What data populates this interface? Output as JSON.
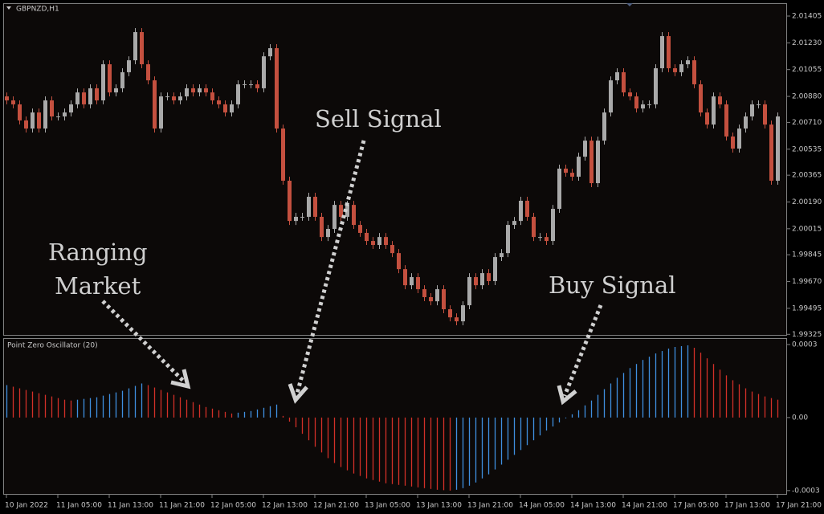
{
  "chart_data": [
    {
      "type": "candlestick",
      "title": "GBPNZD,H1",
      "categories": [
        "10 Jan 2022",
        null,
        null,
        null,
        null,
        null,
        null,
        null,
        "11 Jan 05:00",
        null,
        null,
        null,
        null,
        null,
        null,
        null,
        "11 Jan 13:00",
        null,
        null,
        null,
        null,
        null,
        null,
        null,
        "11 Jan 21:00",
        null,
        null,
        null,
        null,
        null,
        null,
        null,
        "12 Jan 05:00",
        null,
        null,
        null,
        null,
        null,
        null,
        null,
        "12 Jan 13:00",
        null,
        null,
        null,
        null,
        null,
        null,
        null,
        "12 Jan 21:00",
        null,
        null,
        null,
        null,
        null,
        null,
        null,
        "13 Jan 05:00",
        null,
        null,
        null,
        null,
        null,
        null,
        null,
        "13 Jan 13:00",
        null,
        null,
        null,
        null,
        null,
        null,
        null,
        "13 Jan 21:00",
        null,
        null,
        null,
        null,
        null,
        null,
        null,
        "14 Jan 05:00",
        null,
        null,
        null,
        null,
        null,
        null,
        null,
        "14 Jan 13:00",
        null,
        null,
        null,
        null,
        null,
        null,
        null,
        "14 Jan 21:00",
        null,
        null,
        null,
        null,
        null,
        null,
        null,
        "17 Jan 05:00",
        null,
        null,
        null,
        null,
        null,
        null,
        null,
        "17 Jan 13:00",
        null,
        null,
        null,
        null,
        null,
        null,
        null,
        "17 Jan 21:00"
      ],
      "open": [
        2.0088,
        2.00854,
        2.00828,
        2.00723,
        2.0067,
        2.00775,
        2.0067,
        2.00854,
        2.00749,
        2.00749,
        2.00775,
        2.00828,
        2.00906,
        2.00828,
        2.00933,
        2.00854,
        2.0109,
        2.00906,
        2.00933,
        2.01038,
        2.01116,
        2.013,
        2.0109,
        2.00985,
        2.0067,
        2.0088,
        2.0088,
        2.00854,
        2.0088,
        2.00933,
        2.00906,
        2.00933,
        2.00906,
        2.00854,
        2.00828,
        2.00775,
        2.00828,
        2.00959,
        2.00959,
        2.00959,
        2.00933,
        2.01142,
        2.01195,
        2.0067,
        2.00329,
        2.00066,
        2.00093,
        2.00093,
        2.00224,
        2.00093,
        1.99961,
        2.00014,
        2.00171,
        2.00093,
        2.00171,
        2.0004,
        1.99988,
        1.99935,
        1.99909,
        1.99961,
        1.99909,
        1.99856,
        1.99751,
        1.99646,
        1.99699,
        1.9962,
        1.99568,
        1.99541,
        1.9962,
        1.99489,
        1.99436,
        1.9941,
        1.99515,
        1.99699,
        1.99646,
        1.99725,
        1.99673,
        1.9983,
        1.99856,
        2.0004,
        2.00066,
        2.00198,
        2.00093,
        1.99961,
        1.99961,
        1.99935,
        2.00145,
        2.00408,
        2.00381,
        2.00355,
        2.00486,
        2.00591,
        2.00313,
        2.00591,
        2.00775,
        2.00985,
        2.01038,
        2.00906,
        2.0088,
        2.00801,
        2.00828,
        2.00828,
        2.01064,
        2.01274,
        2.01064,
        2.01038,
        2.0109,
        2.01116,
        2.00959,
        2.00775,
        2.00696,
        2.0088,
        2.00828,
        2.00618,
        2.00539,
        2.0067,
        2.00749,
        2.00828,
        2.00828,
        2.00696,
        2.00329
      ],
      "high": [
        2.00906,
        2.0088,
        2.00854,
        2.00749,
        2.00801,
        2.00801,
        2.0088,
        2.0088,
        2.00775,
        2.00801,
        2.00854,
        2.00932,
        2.00932,
        2.00959,
        2.00959,
        2.01116,
        2.01116,
        2.00959,
        2.01064,
        2.01142,
        2.01326,
        2.01326,
        2.01116,
        2.01011,
        2.00906,
        2.00906,
        2.00906,
        2.00906,
        2.00959,
        2.00959,
        2.00959,
        2.00959,
        2.00932,
        2.0088,
        2.00854,
        2.00854,
        2.00985,
        2.00985,
        2.00985,
        2.00985,
        2.01168,
        2.01221,
        2.01221,
        2.00696,
        2.00355,
        2.00119,
        2.00119,
        2.0025,
        2.0025,
        2.00119,
        2.0004,
        2.00197,
        2.00197,
        2.00197,
        2.00197,
        2.00066,
        2.00014,
        1.99961,
        1.99987,
        1.99987,
        1.99935,
        1.99882,
        1.99777,
        1.99725,
        1.99725,
        1.99646,
        1.99594,
        1.99646,
        1.99646,
        1.99515,
        1.99462,
        1.99541,
        1.99725,
        1.99725,
        1.99751,
        1.99751,
        1.99856,
        1.99882,
        2.00066,
        2.00092,
        2.00224,
        2.00224,
        2.00119,
        1.99987,
        1.99987,
        2.00171,
        2.00434,
        2.00434,
        2.00407,
        2.00512,
        2.00617,
        2.00617,
        2.00617,
        2.00801,
        2.01011,
        2.01064,
        2.01064,
        2.00932,
        2.00906,
        2.00854,
        2.00854,
        2.0109,
        2.013,
        2.013,
        2.0109,
        2.01116,
        2.01142,
        2.01142,
        2.00985,
        2.00801,
        2.00906,
        2.00906,
        2.00854,
        2.00644,
        2.00696,
        2.00775,
        2.00854,
        2.00854,
        2.00854,
        2.00722,
        2.00775
      ],
      "low": [
        2.00828,
        2.00802,
        2.00697,
        2.00644,
        2.00644,
        2.00644,
        2.00644,
        2.00723,
        2.00723,
        2.00723,
        2.00749,
        2.00802,
        2.00802,
        2.00802,
        2.00828,
        2.00828,
        2.0088,
        2.0088,
        2.00907,
        2.01012,
        2.0109,
        2.01064,
        2.00959,
        2.00644,
        2.00644,
        2.00854,
        2.00828,
        2.00828,
        2.00854,
        2.0088,
        2.0088,
        2.0088,
        2.00828,
        2.00802,
        2.00749,
        2.00749,
        2.00802,
        2.00933,
        2.00933,
        2.00907,
        2.00907,
        2.01116,
        2.00644,
        2.00303,
        2.0004,
        2.0004,
        2.00067,
        2.00067,
        2.00067,
        1.99935,
        1.99935,
        1.99988,
        2.00067,
        2.00067,
        2.00014,
        1.99962,
        1.99909,
        1.99883,
        1.99883,
        1.99883,
        1.9983,
        1.99725,
        1.9962,
        1.9962,
        1.99594,
        1.99542,
        1.99515,
        1.99515,
        1.99463,
        1.9941,
        1.99384,
        1.99384,
        1.99489,
        1.9962,
        1.9962,
        1.99647,
        1.99647,
        1.99804,
        1.9983,
        2.00014,
        2.0004,
        2.00067,
        1.99935,
        1.99935,
        1.99909,
        1.99909,
        2.00119,
        2.00355,
        2.00329,
        2.00329,
        2.0046,
        2.00287,
        2.00287,
        2.00565,
        2.00749,
        2.00959,
        2.0088,
        2.00854,
        2.00775,
        2.00775,
        2.00802,
        2.00802,
        2.01038,
        2.01038,
        2.01012,
        2.01012,
        2.01064,
        2.00933,
        2.00749,
        2.0067,
        2.0067,
        2.00802,
        2.00592,
        2.00513,
        2.00513,
        2.00644,
        2.00723,
        2.00802,
        2.0067,
        2.00303,
        2.00303
      ],
      "close": [
        2.00854,
        2.00828,
        2.00723,
        2.0067,
        2.00775,
        2.0067,
        2.00854,
        2.00749,
        2.00749,
        2.00775,
        2.00828,
        2.00906,
        2.00828,
        2.00933,
        2.00854,
        2.0109,
        2.00906,
        2.00933,
        2.01038,
        2.01116,
        2.013,
        2.0109,
        2.00985,
        2.0067,
        2.0088,
        2.0088,
        2.00854,
        2.0088,
        2.00933,
        2.00906,
        2.00933,
        2.00906,
        2.00854,
        2.00828,
        2.00775,
        2.00828,
        2.00959,
        2.00959,
        2.00959,
        2.00933,
        2.01142,
        2.01195,
        2.0067,
        2.00329,
        2.00066,
        2.00093,
        2.00093,
        2.00224,
        2.00093,
        1.99961,
        2.00014,
        2.00171,
        2.00093,
        2.00171,
        2.0004,
        1.99988,
        1.99935,
        1.99909,
        1.99961,
        1.99909,
        1.99856,
        1.99751,
        1.99646,
        1.99699,
        1.9962,
        1.99568,
        1.99541,
        1.9962,
        1.99489,
        1.99436,
        1.9941,
        1.99515,
        1.99699,
        1.99646,
        1.99725,
        1.99673,
        1.9983,
        1.99856,
        2.0004,
        2.00066,
        2.00198,
        2.00093,
        1.99961,
        1.99961,
        1.99935,
        2.00145,
        2.00408,
        2.00381,
        2.00355,
        2.00486,
        2.00591,
        2.00313,
        2.00591,
        2.00775,
        2.00985,
        2.01038,
        2.00906,
        2.0088,
        2.00801,
        2.00828,
        2.00828,
        2.01064,
        2.01274,
        2.01064,
        2.01038,
        2.0109,
        2.01116,
        2.00959,
        2.00775,
        2.00696,
        2.0088,
        2.00828,
        2.00618,
        2.00539,
        2.0067,
        2.00749,
        2.00828,
        2.00828,
        2.00696,
        2.00329,
        2.00749
      ],
      "up_color": "#a9a9a9",
      "down_color": "#c4503f",
      "ylim": [
        1.99316,
        2.01489
      ],
      "yticks": [
        2.01405,
        {
          "value": 2.0123,
          "label": "2.01230"
        },
        2.01055,
        {
          "value": 2.0088,
          "label": "2.00880"
        },
        {
          "value": 2.0071,
          "label": "2.00710"
        },
        2.00535,
        2.00365,
        {
          "value": 2.0019,
          "label": "2.00190"
        },
        2.00015,
        1.99845,
        {
          "value": 1.9967,
          "label": "1.99670"
        },
        1.99495,
        1.99325
      ]
    },
    {
      "type": "bar",
      "title": "Point Zero Oscillator (20)",
      "values": [
        0.0001333,
        0.0001267,
        0.00012,
        0.0001133,
        0.0001067,
        0.0001,
        9.33e-05,
        8.67e-05,
        8e-05,
        7.33e-05,
        7e-05,
        7.33e-05,
        7.67e-05,
        8e-05,
        8.33e-05,
        9e-05,
        9.67e-05,
        0.0001033,
        0.00011,
        0.00012,
        0.00013,
        0.00014,
        0.0001333,
        0.0001233,
        0.0001133,
        0.0001033,
        9.33e-05,
        8.33e-05,
        7.33e-05,
        6.33e-05,
        5.33e-05,
        4.33e-05,
        3.67e-05,
        3e-05,
        2.33e-05,
        1.67e-05,
        2e-05,
        2.33e-05,
        2.67e-05,
        3.33e-05,
        4e-05,
        4.67e-05,
        5.33e-05,
        6.7e-06,
        -1.67e-05,
        -4e-05,
        -6.67e-05,
        -9.33e-05,
        -0.00012,
        -0.0001433,
        -0.0001667,
        -0.0001867,
        -0.0002033,
        -0.0002167,
        -0.00023,
        -0.00024,
        -0.00025,
        -0.0002567,
        -0.0002633,
        -0.00027,
        -0.0002733,
        -0.0002767,
        -0.00028,
        -0.0002833,
        -0.0002867,
        -0.00029,
        -0.0002933,
        -0.0002967,
        -0.0002983,
        -0.0003,
        -0.0002967,
        -0.00029,
        -0.00028,
        -0.0002667,
        -0.00025,
        -0.0002333,
        -0.0002133,
        -0.0001933,
        -0.0001733,
        -0.0001533,
        -0.0001333,
        -0.0001133,
        -9.33e-05,
        -7.33e-05,
        -5.33e-05,
        -3.67e-05,
        -2e-05,
        -3.3e-06,
        1.33e-05,
        3e-05,
        5e-05,
        7e-05,
        9.33e-05,
        0.0001167,
        0.00014,
        0.0001633,
        0.0001833,
        0.0002033,
        0.00022,
        0.0002367,
        0.00025,
        0.0002633,
        0.0002733,
        0.0002833,
        0.00029,
        0.0002933,
        0.0002967,
        0.0002867,
        0.0002667,
        0.0002433,
        0.00022,
        0.0001967,
        0.0001733,
        0.0001533,
        0.0001367,
        0.00012,
        0.0001067,
        9.67e-05,
        8.67e-05,
        8e-05,
        7.33e-05
      ],
      "up_color": "#3f8fe0",
      "down_color": "#d23028",
      "ylim": [
        -0.000317,
        0.000323
      ],
      "yticks": [
        0.0003,
        {
          "value": 0,
          "label": "0.00"
        },
        -0.0003
      ]
    }
  ],
  "annotations": [
    {
      "text": [
        "Ranging",
        "Market"
      ]
    },
    {
      "text": [
        "Sell Signal"
      ]
    },
    {
      "text": [
        "Buy Signal"
      ]
    }
  ]
}
